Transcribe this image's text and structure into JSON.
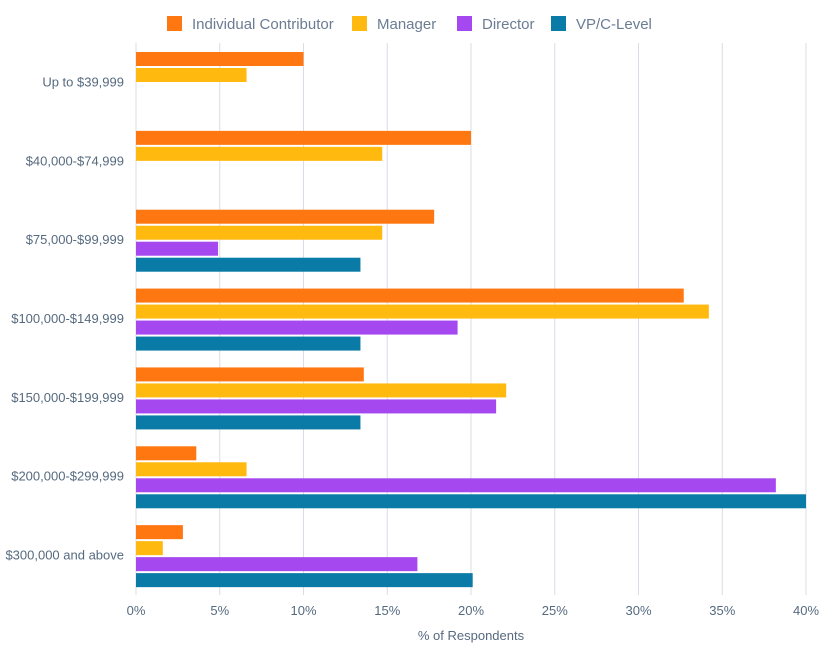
{
  "chart_data": {
    "type": "bar",
    "orientation": "horizontal",
    "categories": [
      "Up to $39,999",
      "$40,000-$74,999",
      "$75,000-$99,999",
      "$100,000-$149,999",
      "$150,000-$199,999",
      "$200,000-$299,999",
      "$300,000 and above"
    ],
    "series": [
      {
        "name": "Individual Contributor",
        "color": "#ff7710",
        "values": [
          10.0,
          20.0,
          17.8,
          32.7,
          13.6,
          3.6,
          2.8
        ]
      },
      {
        "name": "Manager",
        "color": "#ffb90f",
        "values": [
          6.6,
          14.7,
          14.7,
          34.2,
          22.1,
          6.6,
          1.6
        ]
      },
      {
        "name": "Director",
        "color": "#a648ef",
        "values": [
          0,
          0,
          4.9,
          19.2,
          21.5,
          38.2,
          16.8
        ]
      },
      {
        "name": "VP/C-Level",
        "color": "#0a7aa6",
        "values": [
          0,
          0,
          13.4,
          13.4,
          13.4,
          40.0,
          20.1
        ]
      }
    ],
    "xlim": [
      0,
      40
    ],
    "xticks": [
      "0%",
      "5%",
      "10%",
      "15%",
      "20%",
      "25%",
      "30%",
      "35%",
      "40%"
    ],
    "xlabel": "% of Respondents",
    "ylabel": "",
    "grid": true,
    "legend_position": "top"
  }
}
